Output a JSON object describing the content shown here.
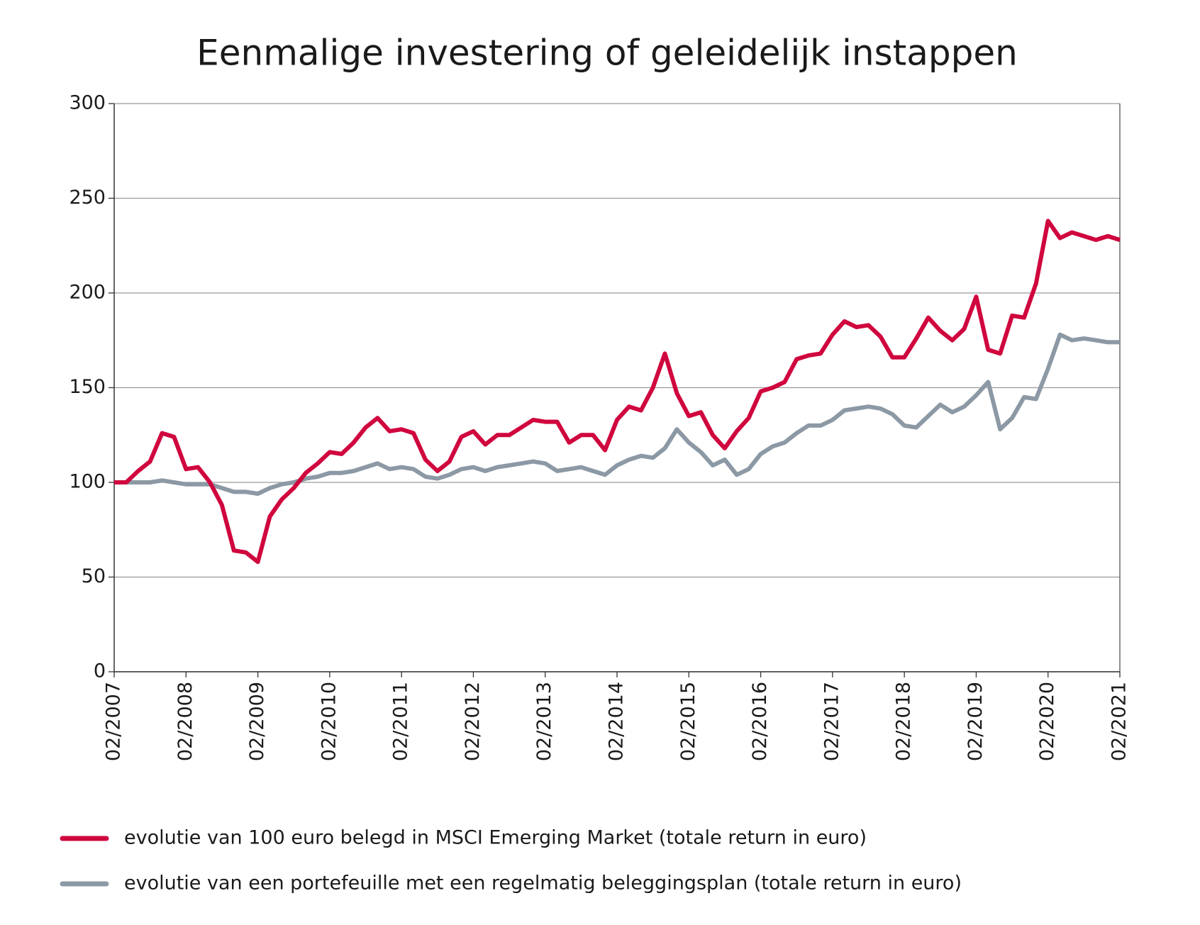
{
  "chart_data": {
    "type": "line",
    "title": "Eenmalige investering of geleidelijk instappen",
    "categories": [
      "02/2007",
      null,
      null,
      null,
      null,
      null,
      "02/2008",
      null,
      null,
      null,
      null,
      null,
      "02/2009",
      null,
      null,
      null,
      null,
      null,
      "02/2010",
      null,
      null,
      null,
      null,
      null,
      "02/2011",
      null,
      null,
      null,
      null,
      null,
      "02/2012",
      null,
      null,
      null,
      null,
      null,
      "02/2013",
      null,
      null,
      null,
      null,
      null,
      "02/2014",
      null,
      null,
      null,
      null,
      null,
      "02/2015",
      null,
      null,
      null,
      null,
      null,
      "02/2016",
      null,
      null,
      null,
      null,
      null,
      "02/2017",
      null,
      null,
      null,
      null,
      null,
      "02/2018",
      null,
      null,
      null,
      null,
      null,
      "02/2019",
      null,
      null,
      null,
      null,
      null,
      "02/2020",
      null,
      null,
      null,
      null,
      null,
      "02/2021"
    ],
    "series": [
      {
        "name": "evolutie van 100 euro belegd in MSCI Emerging Market (totale return in euro)",
        "color": "#d0063e",
        "values": [
          100,
          100,
          106,
          111,
          126,
          124,
          107,
          108,
          100,
          88,
          64,
          63,
          58,
          82,
          91,
          97,
          105,
          110,
          116,
          115,
          121,
          129,
          134,
          127,
          128,
          126,
          112,
          106,
          111,
          124,
          127,
          120,
          125,
          125,
          129,
          133,
          132,
          132,
          121,
          125,
          125,
          117,
          133,
          140,
          138,
          150,
          168,
          147,
          135,
          137,
          125,
          118,
          127,
          134,
          148,
          150,
          153,
          165,
          167,
          168,
          178,
          185,
          182,
          183,
          177,
          166,
          166,
          176,
          187,
          180,
          175,
          181,
          198,
          170,
          168,
          188,
          187,
          205,
          238,
          229,
          232,
          230,
          228,
          230,
          228
        ]
      },
      {
        "name": "evolutie van een portefeuille met een regelmatig beleggingsplan (totale return in euro)",
        "color": "#8c99a5",
        "values": [
          100,
          100,
          100,
          100,
          101,
          100,
          99,
          99,
          99,
          97,
          95,
          95,
          94,
          97,
          99,
          100,
          102,
          103,
          105,
          105,
          106,
          108,
          110,
          107,
          108,
          107,
          103,
          102,
          104,
          107,
          108,
          106,
          108,
          109,
          110,
          111,
          110,
          106,
          107,
          108,
          106,
          104,
          109,
          112,
          114,
          113,
          118,
          128,
          121,
          116,
          109,
          112,
          104,
          107,
          115,
          119,
          121,
          126,
          130,
          130,
          133,
          138,
          139,
          140,
          139,
          136,
          130,
          129,
          135,
          141,
          137,
          140,
          146,
          153,
          128,
          134,
          145,
          144,
          160,
          178,
          175,
          176,
          175,
          174,
          174
        ]
      }
    ],
    "ylim": [
      0,
      300
    ],
    "yticks": [
      0,
      50,
      100,
      150,
      200,
      250,
      300
    ],
    "grid": true
  }
}
